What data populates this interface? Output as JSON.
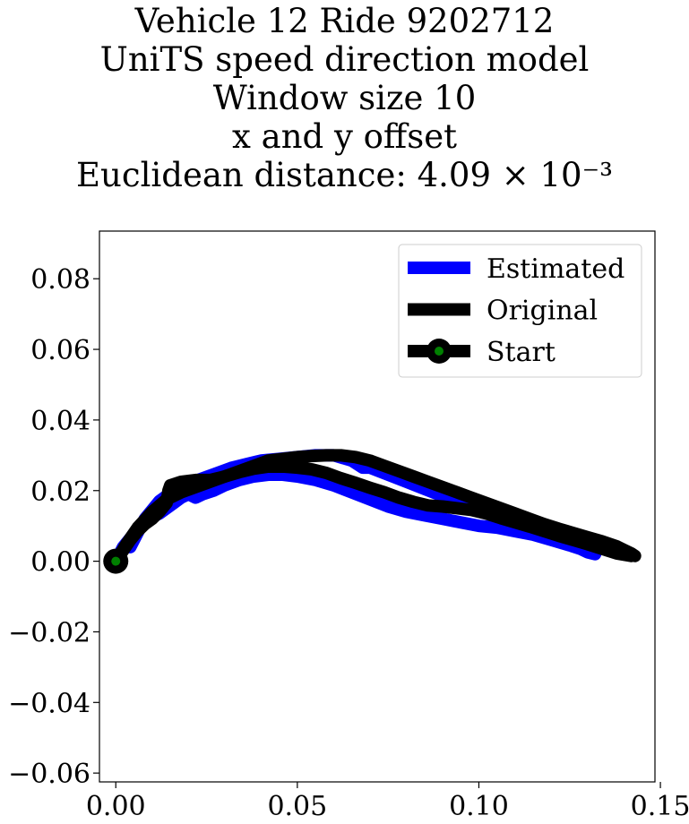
{
  "chart_data": {
    "type": "line",
    "title_lines": [
      "Vehicle 12 Ride 9202712",
      "UniTS speed direction model",
      "Window size 10",
      "x and y offset",
      "Euclidean distance: 4.09 × 10⁻³"
    ],
    "xlabel": "",
    "ylabel": "",
    "xlim": [
      -0.0045,
      0.1485
    ],
    "ylim": [
      -0.0625,
      0.0935
    ],
    "xticks": [
      0.0,
      0.05,
      0.1,
      0.15
    ],
    "xtick_labels": [
      "0.00",
      "0.05",
      "0.10",
      "0.15"
    ],
    "yticks": [
      -0.06,
      -0.04,
      -0.02,
      0.0,
      0.02,
      0.04,
      0.06,
      0.08
    ],
    "ytick_labels": [
      "−0.06",
      "−0.04",
      "−0.02",
      "0.00",
      "0.02",
      "0.04",
      "0.06",
      "0.08"
    ],
    "grid": false,
    "legend_position": "top-right",
    "series": [
      {
        "name": "Estimated",
        "color": "#0000ff",
        "x": [
          0.0,
          0.002,
          0.004,
          0.006,
          0.008,
          0.01,
          0.011,
          0.012,
          0.014,
          0.016,
          0.018,
          0.02,
          0.021,
          0.022,
          0.024,
          0.027,
          0.03,
          0.034,
          0.038,
          0.042,
          0.046,
          0.05,
          0.055,
          0.06,
          0.065,
          0.07,
          0.075,
          0.08,
          0.085,
          0.09,
          0.095,
          0.1,
          0.105,
          0.11,
          0.115,
          0.12,
          0.125,
          0.128,
          0.13,
          0.132
        ],
        "y": [
          0.0,
          0.004,
          0.0065,
          0.009,
          0.011,
          0.0125,
          0.013,
          0.0135,
          0.015,
          0.0165,
          0.018,
          0.019,
          0.0185,
          0.018,
          0.019,
          0.02,
          0.0215,
          0.023,
          0.024,
          0.0245,
          0.0245,
          0.024,
          0.023,
          0.0215,
          0.0195,
          0.0175,
          0.0155,
          0.014,
          0.013,
          0.012,
          0.011,
          0.01,
          0.0095,
          0.0085,
          0.0075,
          0.006,
          0.0045,
          0.0035,
          0.0025,
          0.002
        ]
      },
      {
        "name": "Estimated",
        "color": "#0000ff",
        "x": [
          0.004,
          0.008,
          0.012,
          0.016,
          0.02,
          0.024,
          0.028,
          0.032,
          0.036,
          0.04,
          0.045,
          0.05,
          0.055,
          0.06,
          0.065,
          0.068,
          0.07,
          0.075,
          0.08,
          0.085,
          0.09,
          0.095,
          0.1,
          0.105,
          0.11,
          0.115,
          0.12,
          0.125,
          0.13
        ],
        "y": [
          0.004,
          0.012,
          0.017,
          0.02,
          0.022,
          0.0235,
          0.025,
          0.0265,
          0.0275,
          0.0285,
          0.029,
          0.0295,
          0.03,
          0.03,
          0.0285,
          0.0265,
          0.0265,
          0.0245,
          0.0225,
          0.0205,
          0.0185,
          0.0165,
          0.0145,
          0.0125,
          0.0105,
          0.009,
          0.0075,
          0.006,
          0.0045
        ]
      },
      {
        "name": "Original",
        "color": "#000000",
        "x": [
          0.0,
          0.002,
          0.004,
          0.006,
          0.008,
          0.01,
          0.012,
          0.014,
          0.0145,
          0.015,
          0.018,
          0.022,
          0.026,
          0.03,
          0.034,
          0.038,
          0.042,
          0.046,
          0.05,
          0.054,
          0.058,
          0.062,
          0.066,
          0.07,
          0.074,
          0.078,
          0.082,
          0.086,
          0.09,
          0.094,
          0.098,
          0.102,
          0.106,
          0.11,
          0.114,
          0.118,
          0.122,
          0.126,
          0.13,
          0.134,
          0.138,
          0.14,
          0.142,
          0.143
        ],
        "y": [
          0.0,
          0.003,
          0.006,
          0.0085,
          0.0105,
          0.012,
          0.014,
          0.0165,
          0.02,
          0.0215,
          0.0225,
          0.023,
          0.023,
          0.024,
          0.0255,
          0.027,
          0.0285,
          0.029,
          0.0295,
          0.0298,
          0.03,
          0.03,
          0.0295,
          0.0285,
          0.027,
          0.0255,
          0.024,
          0.0225,
          0.021,
          0.0195,
          0.018,
          0.0165,
          0.015,
          0.0135,
          0.012,
          0.0105,
          0.0092,
          0.008,
          0.0068,
          0.0056,
          0.0042,
          0.0032,
          0.0022,
          0.0015
        ]
      },
      {
        "name": "Original",
        "color": "#000000",
        "x": [
          0.0,
          0.003,
          0.006,
          0.01,
          0.014,
          0.018,
          0.022,
          0.026,
          0.03,
          0.034,
          0.038,
          0.042,
          0.046,
          0.05,
          0.054,
          0.058,
          0.062,
          0.066,
          0.07,
          0.074,
          0.078,
          0.082,
          0.086,
          0.09,
          0.094,
          0.098,
          0.102,
          0.106,
          0.11,
          0.114,
          0.118,
          0.122,
          0.126,
          0.13,
          0.134,
          0.138,
          0.142
        ],
        "y": [
          0.0,
          0.005,
          0.0095,
          0.014,
          0.0175,
          0.0195,
          0.021,
          0.0225,
          0.024,
          0.0252,
          0.0262,
          0.0268,
          0.0268,
          0.0265,
          0.026,
          0.025,
          0.0235,
          0.0222,
          0.0208,
          0.0195,
          0.018,
          0.0168,
          0.0158,
          0.0155,
          0.015,
          0.0145,
          0.0135,
          0.0122,
          0.011,
          0.0098,
          0.0085,
          0.0072,
          0.006,
          0.0048,
          0.0035,
          0.0022,
          0.0015
        ]
      }
    ],
    "start_point": {
      "name": "Start",
      "x": 0.0,
      "y": 0.0,
      "marker_face": "#008000",
      "marker_edge": "#000000"
    },
    "legend": [
      {
        "label": "Estimated",
        "kind": "line",
        "color": "#0000ff"
      },
      {
        "label": "Original",
        "kind": "line",
        "color": "#000000"
      },
      {
        "label": "Start",
        "kind": "marker",
        "color": "#000000",
        "marker_face": "#008000"
      }
    ]
  }
}
